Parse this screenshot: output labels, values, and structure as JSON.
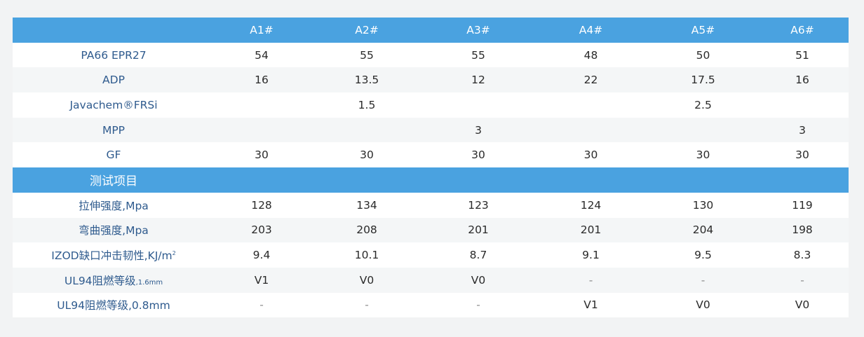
{
  "columns": [
    "A1#",
    "A2#",
    "A3#",
    "A4#",
    "A5#",
    "A6#"
  ],
  "formula_rows": [
    {
      "label": "PA66 EPR27",
      "values": [
        "54",
        "55",
        "55",
        "48",
        "50",
        "51"
      ]
    },
    {
      "label": "ADP",
      "values": [
        "16",
        "13.5",
        "12",
        "22",
        "17.5",
        "16"
      ]
    },
    {
      "label": "Javachem®FRSi",
      "values": [
        "",
        "1.5",
        "",
        "",
        "2.5",
        ""
      ]
    },
    {
      "label": "MPP",
      "values": [
        "",
        "",
        "3",
        "",
        "",
        "3"
      ]
    },
    {
      "label": "GF",
      "values": [
        "30",
        "30",
        "30",
        "30",
        "30",
        "30"
      ]
    }
  ],
  "test_header": "测试项目",
  "test_rows": [
    {
      "label": "拉伸强度,Mpa",
      "values": [
        "128",
        "134",
        "123",
        "124",
        "130",
        "119"
      ]
    },
    {
      "label": "弯曲强度,Mpa",
      "values": [
        "203",
        "208",
        "201",
        "201",
        "204",
        "198"
      ]
    },
    {
      "label": "IZOD缺口冲击韧性,KJ/m",
      "label_sup": "2",
      "values": [
        "9.4",
        "10.1",
        "8.7",
        "9.1",
        "9.5",
        "8.3"
      ]
    },
    {
      "label": "UL94阻燃等级",
      "label_small": ",1.6mm",
      "values": [
        "V1",
        "V0",
        "V0",
        "-",
        "-",
        "-"
      ]
    },
    {
      "label": "UL94阻燃等级,0.8mm",
      "values": [
        "-",
        "-",
        "-",
        "V1",
        "V0",
        "V0"
      ]
    }
  ]
}
